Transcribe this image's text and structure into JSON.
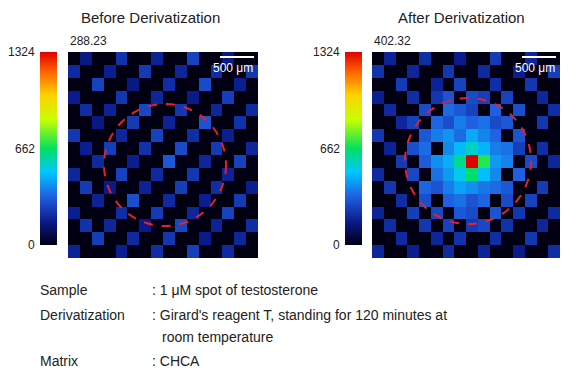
{
  "chart_data": [
    {
      "type": "heatmap",
      "title": "Before Derivatization",
      "intensity_label": "288.23",
      "scale_bar": "500 μm",
      "tick_labels": false,
      "colorbar": {
        "range": [
          0,
          1324
        ],
        "ticks": [
          0,
          662,
          1324
        ]
      },
      "z": [
        [
          0,
          150,
          0,
          0,
          220,
          0,
          0,
          180,
          0,
          0,
          260,
          0,
          0,
          150,
          0,
          0
        ],
        [
          200,
          0,
          0,
          170,
          0,
          0,
          240,
          0,
          0,
          190,
          0,
          0,
          210,
          0,
          0,
          230
        ],
        [
          0,
          0,
          260,
          0,
          0,
          150,
          0,
          0,
          210,
          0,
          0,
          280,
          0,
          0,
          170,
          0
        ],
        [
          160,
          0,
          0,
          0,
          230,
          0,
          0,
          190,
          0,
          0,
          160,
          0,
          0,
          250,
          0,
          0
        ],
        [
          0,
          210,
          0,
          180,
          0,
          0,
          270,
          0,
          0,
          230,
          0,
          0,
          190,
          0,
          0,
          200
        ],
        [
          0,
          0,
          150,
          0,
          0,
          240,
          0,
          0,
          180,
          0,
          0,
          300,
          0,
          0,
          220,
          0
        ],
        [
          230,
          0,
          0,
          0,
          190,
          0,
          0,
          260,
          0,
          0,
          210,
          0,
          0,
          170,
          0,
          0
        ],
        [
          0,
          170,
          0,
          250,
          0,
          0,
          220,
          0,
          0,
          280,
          0,
          0,
          240,
          0,
          0,
          190
        ],
        [
          0,
          0,
          200,
          0,
          0,
          170,
          0,
          0,
          310,
          0,
          0,
          190,
          0,
          0,
          260,
          0
        ],
        [
          190,
          0,
          0,
          0,
          260,
          0,
          0,
          200,
          0,
          0,
          230,
          0,
          0,
          180,
          0,
          0
        ],
        [
          0,
          240,
          0,
          160,
          0,
          0,
          180,
          0,
          0,
          250,
          0,
          0,
          210,
          0,
          0,
          170
        ],
        [
          0,
          0,
          180,
          0,
          0,
          290,
          0,
          0,
          200,
          0,
          0,
          170,
          0,
          0,
          240,
          0
        ],
        [
          170,
          0,
          0,
          0,
          210,
          0,
          0,
          240,
          0,
          0,
          190,
          0,
          0,
          260,
          0,
          0
        ],
        [
          0,
          220,
          0,
          190,
          0,
          0,
          160,
          0,
          0,
          270,
          0,
          0,
          180,
          0,
          0,
          210
        ],
        [
          0,
          0,
          250,
          0,
          0,
          200,
          0,
          0,
          230,
          0,
          0,
          160,
          0,
          0,
          190,
          0
        ],
        [
          180,
          0,
          0,
          0,
          170,
          0,
          0,
          210,
          0,
          0,
          250,
          0,
          0,
          200,
          0,
          0
        ]
      ]
    },
    {
      "type": "heatmap",
      "title": "After Derivatization",
      "intensity_label": "402.32",
      "scale_bar": "500 μm",
      "tick_labels": false,
      "colorbar": {
        "range": [
          0,
          1324
        ],
        "ticks": [
          0,
          662,
          1324
        ]
      },
      "z": [
        [
          0,
          180,
          0,
          0,
          210,
          0,
          0,
          160,
          0,
          0,
          240,
          0,
          0,
          190,
          0,
          0
        ],
        [
          220,
          0,
          0,
          190,
          0,
          0,
          230,
          0,
          0,
          200,
          0,
          0,
          170,
          0,
          0,
          250
        ],
        [
          0,
          0,
          240,
          0,
          0,
          180,
          0,
          260,
          0,
          0,
          210,
          0,
          0,
          230,
          0,
          0
        ],
        [
          170,
          0,
          0,
          210,
          0,
          230,
          300,
          0,
          280,
          250,
          0,
          260,
          0,
          0,
          190,
          0
        ],
        [
          0,
          200,
          0,
          0,
          280,
          0,
          350,
          310,
          260,
          0,
          330,
          0,
          290,
          0,
          0,
          210
        ],
        [
          0,
          0,
          190,
          260,
          0,
          340,
          290,
          380,
          330,
          360,
          280,
          310,
          0,
          0,
          230,
          0
        ],
        [
          230,
          0,
          0,
          0,
          310,
          380,
          420,
          350,
          450,
          390,
          340,
          0,
          300,
          0,
          0,
          0
        ],
        [
          0,
          180,
          0,
          290,
          350,
          0,
          400,
          480,
          560,
          470,
          380,
          360,
          250,
          0,
          210,
          0
        ],
        [
          0,
          0,
          240,
          0,
          320,
          410,
          460,
          620,
          1324,
          700,
          430,
          390,
          0,
          280,
          0,
          190
        ],
        [
          200,
          0,
          0,
          270,
          0,
          360,
          430,
          520,
          650,
          490,
          400,
          0,
          330,
          0,
          0,
          0
        ],
        [
          0,
          230,
          0,
          0,
          340,
          300,
          380,
          440,
          410,
          370,
          350,
          310,
          0,
          0,
          240,
          0
        ],
        [
          0,
          0,
          210,
          0,
          290,
          0,
          330,
          360,
          300,
          340,
          0,
          280,
          0,
          260,
          0,
          0
        ],
        [
          180,
          0,
          0,
          250,
          0,
          270,
          0,
          310,
          280,
          0,
          300,
          0,
          230,
          0,
          0,
          200
        ],
        [
          0,
          210,
          0,
          0,
          230,
          0,
          260,
          0,
          240,
          270,
          0,
          220,
          0,
          0,
          190,
          0
        ],
        [
          0,
          0,
          200,
          0,
          0,
          190,
          0,
          220,
          0,
          0,
          210,
          0,
          0,
          230,
          0,
          0
        ],
        [
          190,
          0,
          0,
          170,
          0,
          0,
          200,
          0,
          0,
          180,
          0,
          0,
          160,
          0,
          0,
          210
        ]
      ]
    }
  ],
  "caption": {
    "rows": [
      {
        "label": "Sample",
        "lines": [
          ": 1 μM spot of testosterone"
        ]
      },
      {
        "label": "Derivatization",
        "lines": [
          ": Girard's reagent T, standing for 120 minutes at",
          "room temperature"
        ]
      },
      {
        "label": "Matrix",
        "lines": [
          ": CHCA"
        ]
      }
    ]
  }
}
